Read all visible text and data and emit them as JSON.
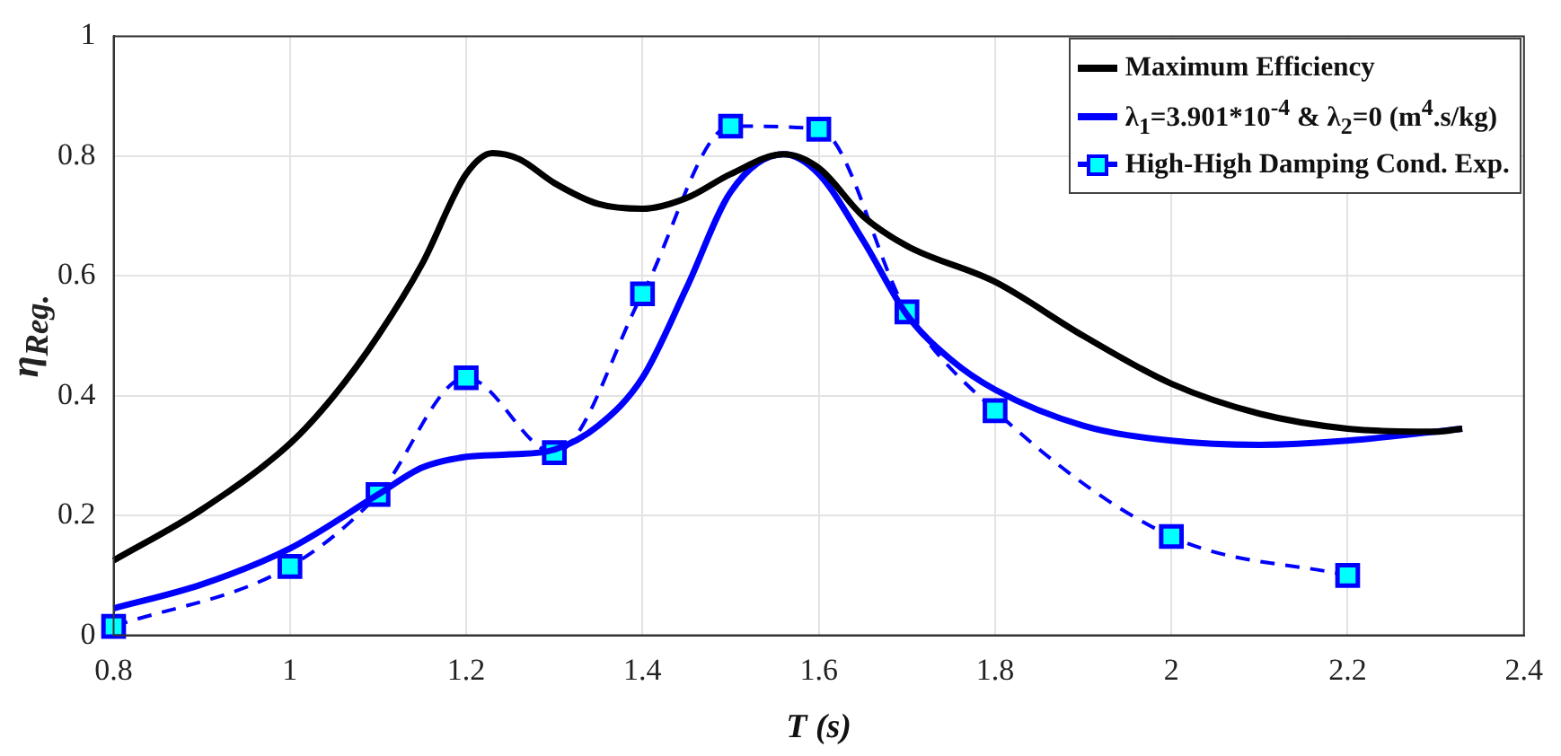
{
  "chart_data": {
    "type": "line",
    "xlabel": "T (s)",
    "ylabel": "η$_{Reg.}$",
    "xlim": [
      0.8,
      2.4
    ],
    "xticks": [
      {
        "value": 0.8,
        "label": "0.8"
      },
      1,
      {
        "value": 1.2,
        "label": "1.2"
      },
      {
        "value": 1.4,
        "label": "1.4"
      },
      {
        "value": 1.6,
        "label": "1.6"
      },
      {
        "value": 1.8,
        "label": "1.8"
      },
      2,
      {
        "value": 2.2,
        "label": "2.2"
      },
      {
        "value": 2.4,
        "label": "2.4"
      }
    ],
    "ylim": [
      0,
      1
    ],
    "yticks": [
      0,
      {
        "value": 0.2,
        "label": "0.2"
      },
      {
        "value": 0.4,
        "label": "0.4"
      },
      {
        "value": 0.6,
        "label": "0.6"
      },
      {
        "value": 0.8,
        "label": "0.8"
      },
      1
    ],
    "grid": true,
    "legend": "top right",
    "series": [
      {
        "name": "Maximum Efficiency",
        "color": "#000000",
        "line_style": "solid",
        "marker": "none",
        "x": [
          0.8,
          0.9,
          1.0,
          1.05,
          1.1,
          1.15,
          1.2,
          1.23,
          1.26,
          1.3,
          1.35,
          1.4,
          1.45,
          1.5,
          1.56,
          1.6,
          1.65,
          1.7,
          1.8,
          1.9,
          2.0,
          2.1,
          2.2,
          2.3,
          2.33
        ],
        "values": [
          0.125,
          0.21,
          0.32,
          0.4,
          0.5,
          0.62,
          0.77,
          0.805,
          0.795,
          0.755,
          0.72,
          0.712,
          0.73,
          0.77,
          0.803,
          0.78,
          0.7,
          0.65,
          0.59,
          0.5,
          0.42,
          0.37,
          0.345,
          0.34,
          0.345
        ]
      },
      {
        "name": "λ$_{1}$=3.901*10$^{-4}$ & λ$_{2}$=0 (m$^{4}$.s/kg)",
        "color": "#0000ff",
        "line_style": "solid",
        "marker": "none",
        "x": [
          0.8,
          0.9,
          1.0,
          1.1,
          1.15,
          1.2,
          1.25,
          1.3,
          1.35,
          1.4,
          1.45,
          1.5,
          1.56,
          1.6,
          1.65,
          1.7,
          1.75,
          1.8,
          1.9,
          2.0,
          2.1,
          2.2,
          2.33
        ],
        "values": [
          0.045,
          0.085,
          0.145,
          0.235,
          0.28,
          0.298,
          0.302,
          0.31,
          0.35,
          0.43,
          0.58,
          0.74,
          0.803,
          0.77,
          0.66,
          0.535,
          0.46,
          0.41,
          0.35,
          0.325,
          0.318,
          0.325,
          0.345
        ]
      },
      {
        "name": "High-High Damping Cond. Exp.",
        "color": "#0000ff",
        "line_style": "dashed",
        "marker": "square",
        "x": [
          0.8,
          1.0,
          1.1,
          1.2,
          1.3,
          1.4,
          1.5,
          1.6,
          1.7,
          1.8,
          2.0,
          2.2
        ],
        "values": [
          0.015,
          0.115,
          0.235,
          0.43,
          0.305,
          0.57,
          0.85,
          0.845,
          0.54,
          0.375,
          0.165,
          0.1
        ]
      }
    ]
  }
}
